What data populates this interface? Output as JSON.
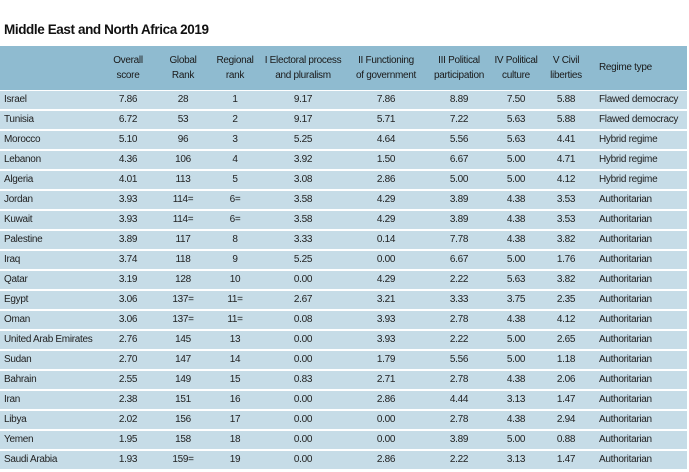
{
  "title": "Middle East and North Africa 2019",
  "headers": [
    "",
    "Overall\nscore",
    "Global\nRank",
    "Regional\nrank",
    "I Electoral process\nand pluralism",
    "II Functioning\nof government",
    "III Political\nparticipation",
    "IV Political\nculture",
    "V Civil\nliberties",
    "Regime type"
  ],
  "rows": [
    [
      "Israel",
      "7.86",
      "28",
      "1",
      "9.17",
      "7.86",
      "8.89",
      "7.50",
      "5.88",
      "Flawed democracy"
    ],
    [
      "Tunisia",
      "6.72",
      "53",
      "2",
      "9.17",
      "5.71",
      "7.22",
      "5.63",
      "5.88",
      "Flawed democracy"
    ],
    [
      "Morocco",
      "5.10",
      "96",
      "3",
      "5.25",
      "4.64",
      "5.56",
      "5.63",
      "4.41",
      "Hybrid regime"
    ],
    [
      "Lebanon",
      "4.36",
      "106",
      "4",
      "3.92",
      "1.50",
      "6.67",
      "5.00",
      "4.71",
      "Hybrid regime"
    ],
    [
      "Algeria",
      "4.01",
      "113",
      "5",
      "3.08",
      "2.86",
      "5.00",
      "5.00",
      "4.12",
      "Hybrid regime"
    ],
    [
      "Jordan",
      "3.93",
      "114=",
      "6=",
      "3.58",
      "4.29",
      "3.89",
      "4.38",
      "3.53",
      "Authoritarian"
    ],
    [
      "Kuwait",
      "3.93",
      "114=",
      "6=",
      "3.58",
      "4.29",
      "3.89",
      "4.38",
      "3.53",
      "Authoritarian"
    ],
    [
      "Palestine",
      "3.89",
      "117",
      "8",
      "3.33",
      "0.14",
      "7.78",
      "4.38",
      "3.82",
      "Authoritarian"
    ],
    [
      "Iraq",
      "3.74",
      "118",
      "9",
      "5.25",
      "0.00",
      "6.67",
      "5.00",
      "1.76",
      "Authoritarian"
    ],
    [
      "Qatar",
      "3.19",
      "128",
      "10",
      "0.00",
      "4.29",
      "2.22",
      "5.63",
      "3.82",
      "Authoritarian"
    ],
    [
      "Egypt",
      "3.06",
      "137=",
      "11=",
      "2.67",
      "3.21",
      "3.33",
      "3.75",
      "2.35",
      "Authoritarian"
    ],
    [
      "Oman",
      "3.06",
      "137=",
      "11=",
      "0.08",
      "3.93",
      "2.78",
      "4.38",
      "4.12",
      "Authoritarian"
    ],
    [
      "United Arab Emirates",
      "2.76",
      "145",
      "13",
      "0.00",
      "3.93",
      "2.22",
      "5.00",
      "2.65",
      "Authoritarian"
    ],
    [
      "Sudan",
      "2.70",
      "147",
      "14",
      "0.00",
      "1.79",
      "5.56",
      "5.00",
      "1.18",
      "Authoritarian"
    ],
    [
      "Bahrain",
      "2.55",
      "149",
      "15",
      "0.83",
      "2.71",
      "2.78",
      "4.38",
      "2.06",
      "Authoritarian"
    ],
    [
      "Iran",
      "2.38",
      "151",
      "16",
      "0.00",
      "2.86",
      "4.44",
      "3.13",
      "1.47",
      "Authoritarian"
    ],
    [
      "Libya",
      "2.02",
      "156",
      "17",
      "0.00",
      "0.00",
      "2.78",
      "4.38",
      "2.94",
      "Authoritarian"
    ],
    [
      "Yemen",
      "1.95",
      "158",
      "18",
      "0.00",
      "0.00",
      "3.89",
      "5.00",
      "0.88",
      "Authoritarian"
    ],
    [
      "Saudi Arabia",
      "1.93",
      "159=",
      "19",
      "0.00",
      "2.86",
      "2.22",
      "3.13",
      "1.47",
      "Authoritarian"
    ]
  ]
}
